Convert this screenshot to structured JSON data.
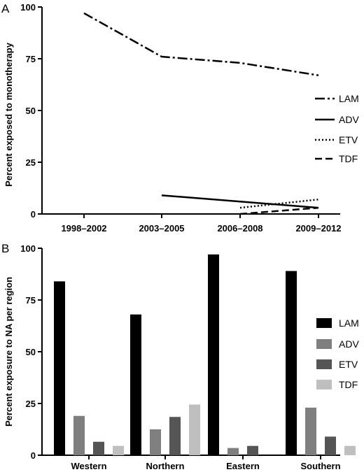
{
  "chart_data": [
    {
      "panel": "A",
      "type": "line",
      "categories": [
        "1998–2002",
        "2003–2005",
        "2006–2008",
        "2009–2012"
      ],
      "ylabel": "Percent exposed to monotherapy",
      "ylim": [
        0,
        100
      ],
      "yticks": [
        0,
        25,
        50,
        75,
        100
      ],
      "legend_position": "right",
      "series": [
        {
          "name": "LAM",
          "values": [
            97,
            76,
            73,
            67
          ],
          "style": "dashdot"
        },
        {
          "name": "ADV",
          "values": [
            null,
            9,
            6,
            3
          ],
          "style": "solid"
        },
        {
          "name": "ETV",
          "values": [
            null,
            null,
            3,
            7
          ],
          "style": "dotted"
        },
        {
          "name": "TDF",
          "values": [
            null,
            null,
            0,
            3
          ],
          "style": "dashed"
        }
      ]
    },
    {
      "panel": "B",
      "type": "bar",
      "categories": [
        "Western",
        "Northern",
        "Eastern",
        "Southern"
      ],
      "ylabel": "Percent exposure to NA per region",
      "ylim": [
        0,
        100
      ],
      "yticks": [
        0,
        25,
        50,
        75,
        100
      ],
      "legend_position": "right",
      "series": [
        {
          "name": "LAM",
          "values": [
            84,
            68,
            97,
            89
          ],
          "color": "#000000"
        },
        {
          "name": "ADV",
          "values": [
            19,
            12.5,
            3.5,
            23
          ],
          "color": "#7f7f7f"
        },
        {
          "name": "ETV",
          "values": [
            6.5,
            18.5,
            4.5,
            9
          ],
          "color": "#555555"
        },
        {
          "name": "TDF",
          "values": [
            4.5,
            24.5,
            0,
            4.5
          ],
          "color": "#bfbfbf"
        }
      ]
    }
  ]
}
